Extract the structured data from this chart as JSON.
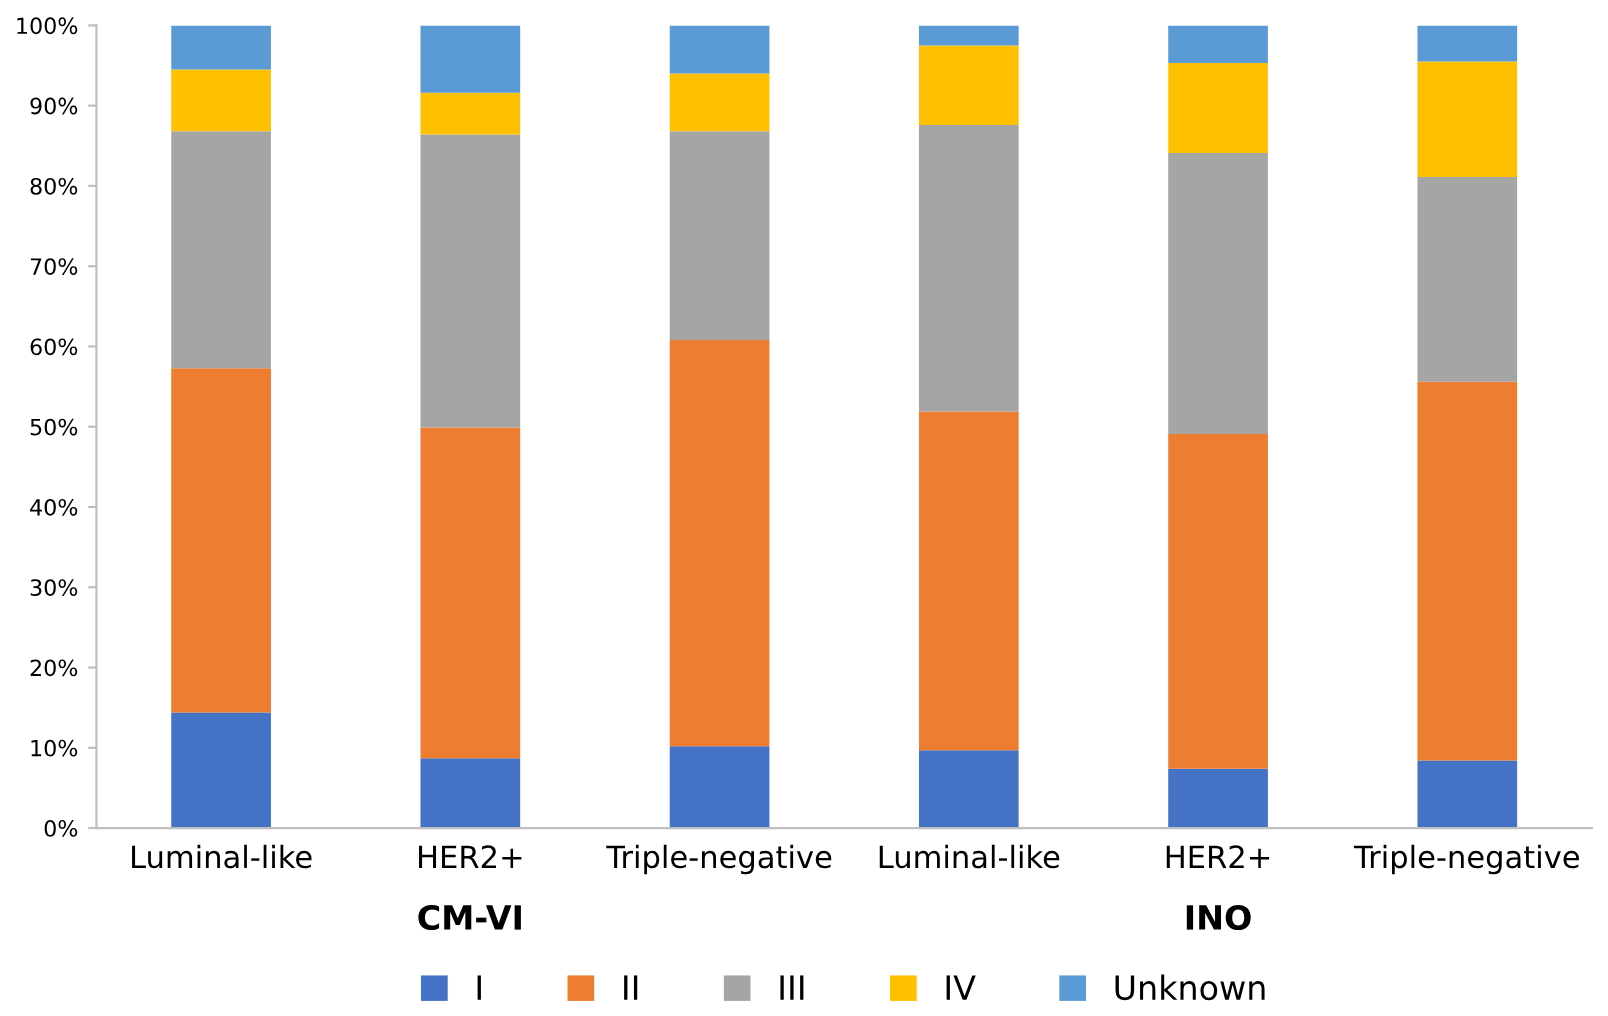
{
  "chart_data": {
    "type": "bar",
    "stacked": true,
    "categories": [
      "Luminal-like",
      "HER2+",
      "Triple-negative",
      "Luminal-like",
      "HER2+",
      "Triple-negative"
    ],
    "series": [
      {
        "name": "I",
        "color": "#4472c4",
        "values": [
          14.4,
          8.7,
          10.2,
          9.7,
          7.4,
          8.4
        ]
      },
      {
        "name": "II",
        "color": "#ed7d31",
        "values": [
          42.9,
          41.2,
          50.6,
          42.2,
          41.7,
          47.2
        ]
      },
      {
        "name": "III",
        "color": "#a5a5a5",
        "values": [
          29.5,
          36.5,
          26.0,
          35.7,
          35.0,
          25.5
        ]
      },
      {
        "name": "IV",
        "color": "#ffc000",
        "values": [
          7.7,
          5.2,
          7.2,
          9.9,
          11.2,
          14.4
        ]
      },
      {
        "name": "Unknown",
        "color": "#5b9bd5",
        "values": [
          5.5,
          8.4,
          6.0,
          2.5,
          4.7,
          4.5
        ]
      }
    ],
    "ylim": [
      0,
      100
    ],
    "yticks": [
      {
        "value": 0,
        "label": "0%"
      },
      {
        "value": 10,
        "label": "10%"
      },
      {
        "value": 20,
        "label": "20%"
      },
      {
        "value": 30,
        "label": "30%"
      },
      {
        "value": 40,
        "label": "40%"
      },
      {
        "value": 50,
        "label": "50%"
      },
      {
        "value": 60,
        "label": "60%"
      },
      {
        "value": 70,
        "label": "70%"
      },
      {
        "value": 80,
        "label": "80%"
      },
      {
        "value": 90,
        "label": "90%"
      },
      {
        "value": 100,
        "label": "100%"
      }
    ],
    "annotations": [
      "CM-VI",
      "INO"
    ],
    "legend": "bottom",
    "grid": false
  }
}
